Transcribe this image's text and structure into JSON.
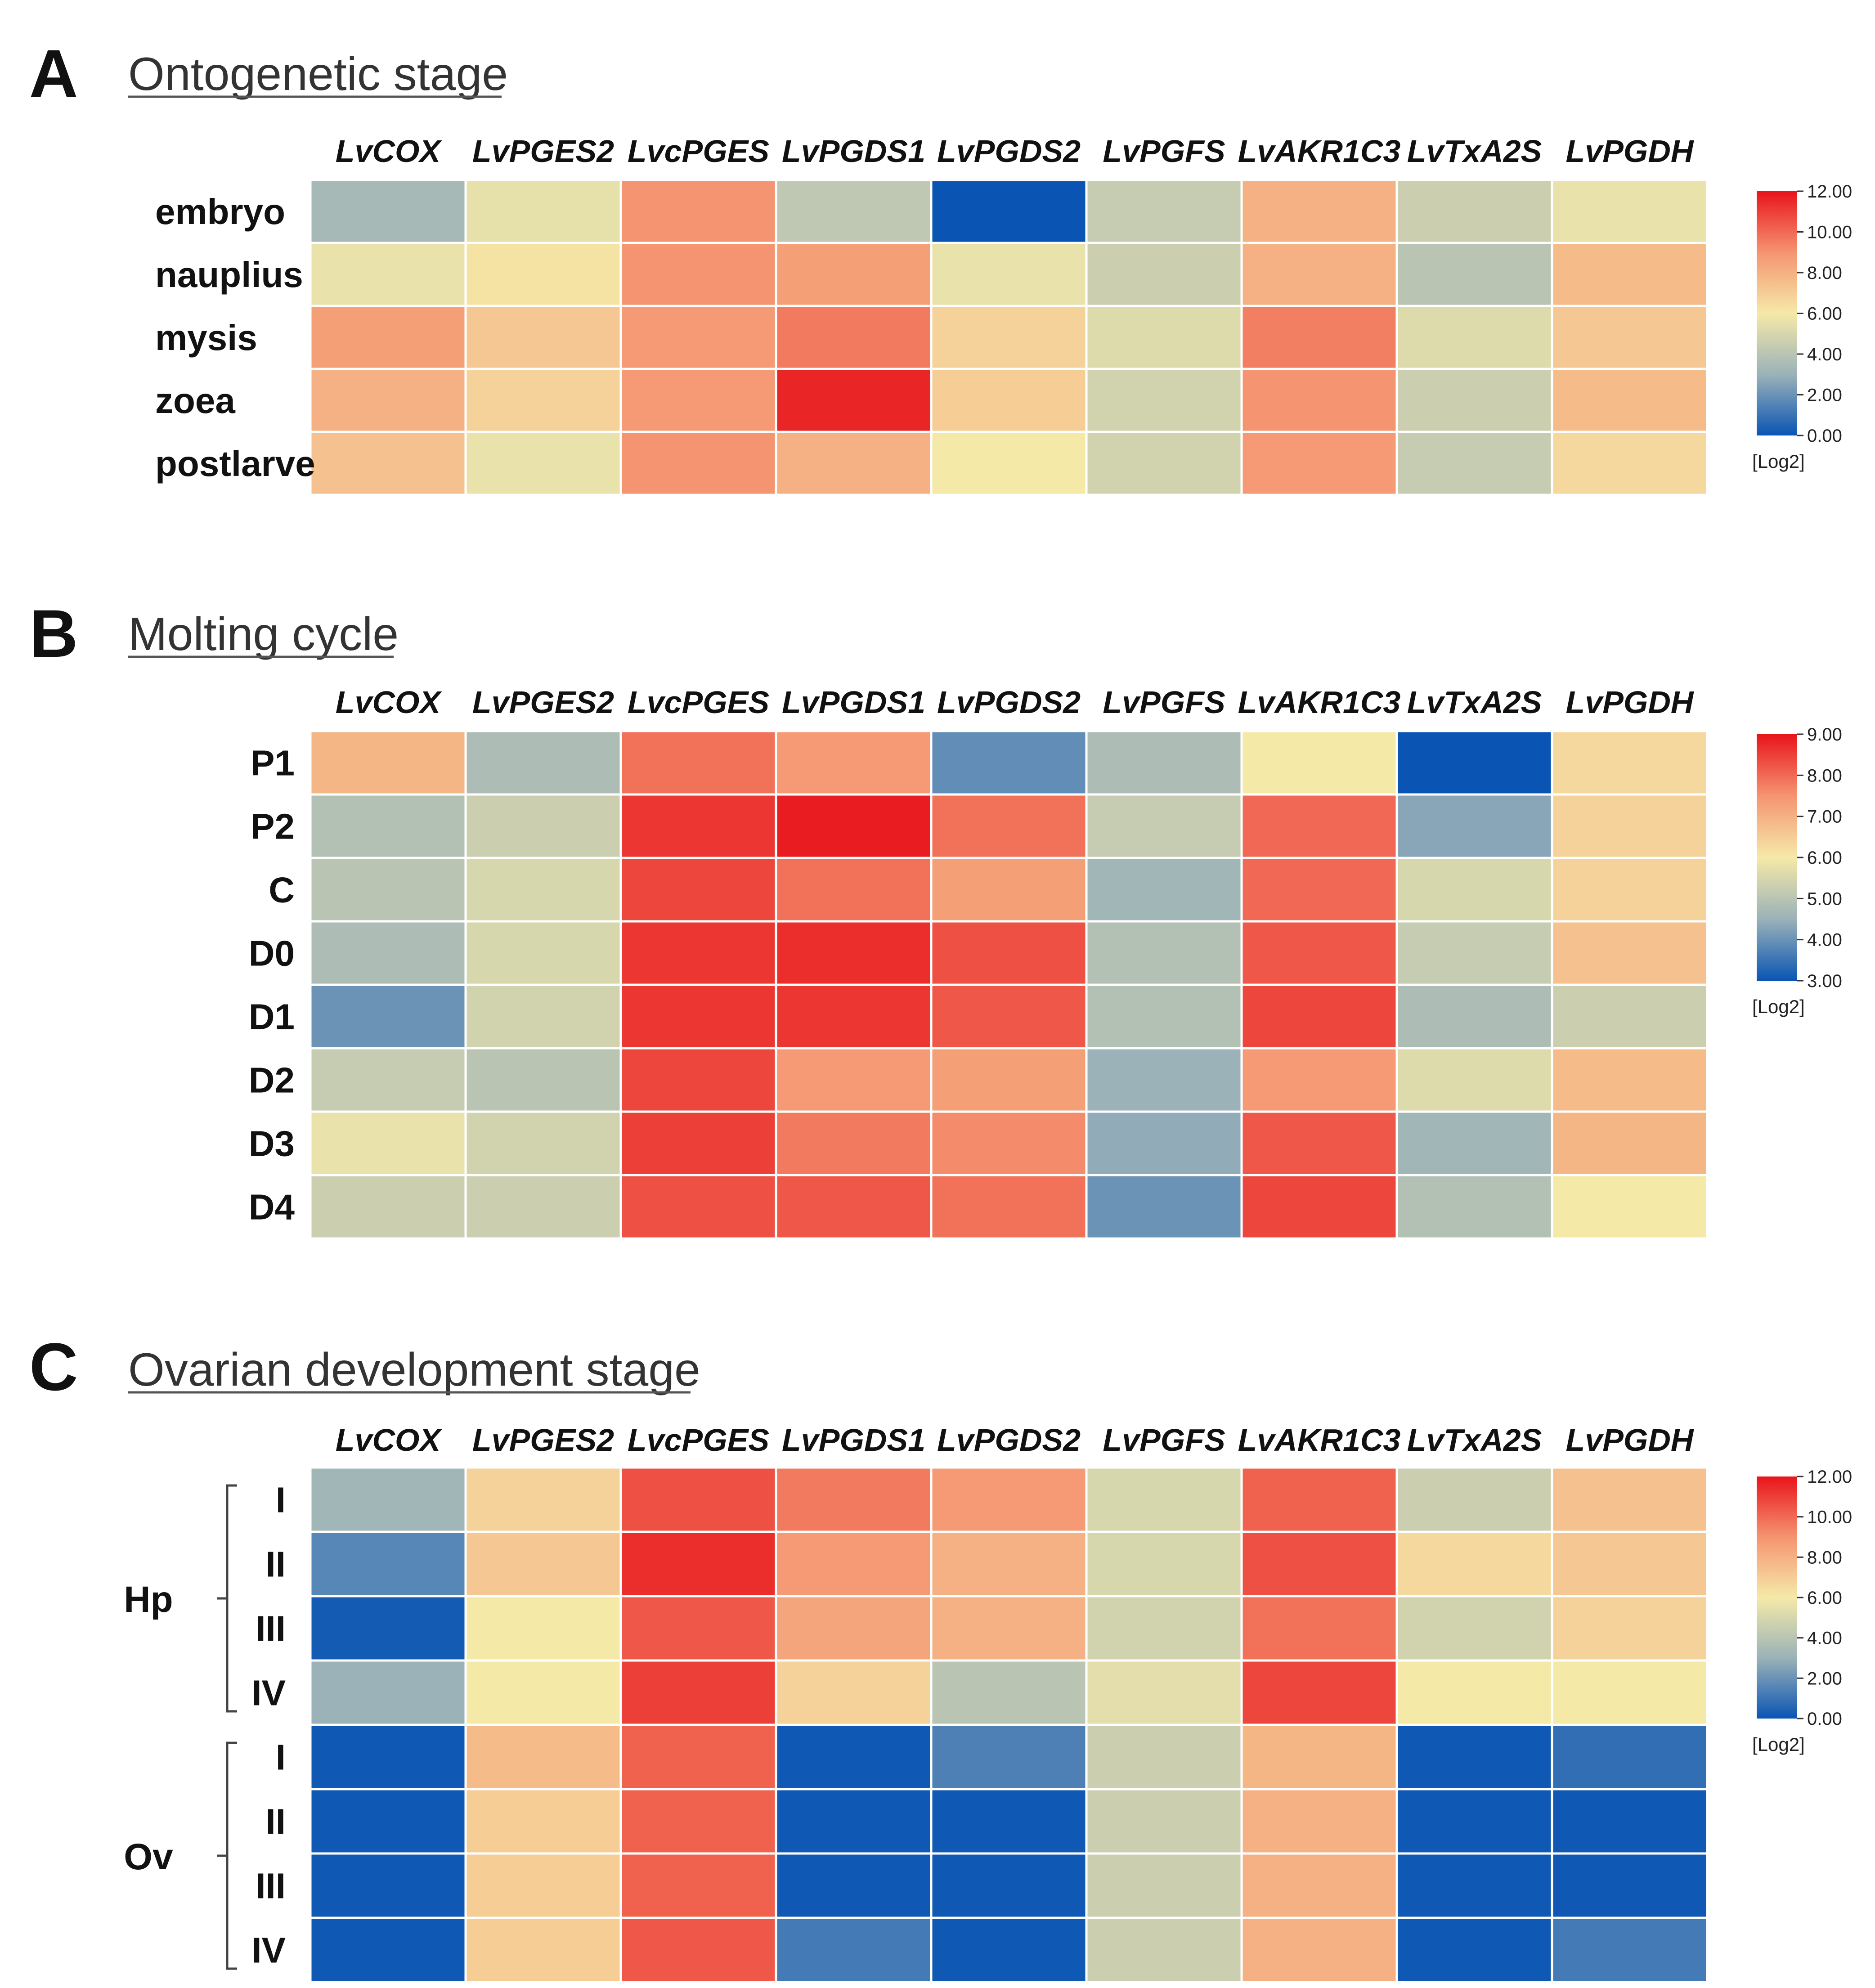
{
  "chart_data": [
    {
      "type": "heatmap",
      "panel_label": "A",
      "title": "Ontogenetic stage",
      "genes": [
        "LvCOX",
        "LvPGES2",
        "LvcPGES",
        "LvPGDS1",
        "LvPGDS2",
        "LvPGFS",
        "LvAKR1C3",
        "LvTxA2S",
        "LvPGDH"
      ],
      "rows": [
        "embryo",
        "nauplius",
        "mysis",
        "zoea",
        "postlarve"
      ],
      "values": [
        [
          3.4,
          5.5,
          9.0,
          4.2,
          0.0,
          4.4,
          8.0,
          4.6,
          5.6
        ],
        [
          5.6,
          6.2,
          9.0,
          8.6,
          5.6,
          4.6,
          8.0,
          4.0,
          7.6
        ],
        [
          8.6,
          7.2,
          8.8,
          9.6,
          6.8,
          5.2,
          9.5,
          5.2,
          7.2
        ],
        [
          8.0,
          6.8,
          8.8,
          11.6,
          7.0,
          4.8,
          9.0,
          4.6,
          7.6
        ],
        [
          7.4,
          5.6,
          9.0,
          8.0,
          6.0,
          4.8,
          8.8,
          4.4,
          6.6
        ]
      ],
      "colorbar": {
        "min": 0,
        "max": 12,
        "ticks": [
          "12.00",
          "10.00",
          "8.00",
          "6.00",
          "4.00",
          "2.00",
          "0.00"
        ],
        "label": "[Log2]"
      }
    },
    {
      "type": "heatmap",
      "panel_label": "B",
      "title": "Molting cycle",
      "genes": [
        "LvCOX",
        "LvPGES2",
        "LvcPGES",
        "LvPGDS1",
        "LvPGDS2",
        "LvPGFS",
        "LvAKR1C3",
        "LvTxA2S",
        "LvPGDH"
      ],
      "rows": [
        "P1",
        "P2",
        "C",
        "D0",
        "D1",
        "D2",
        "D3",
        "D4"
      ],
      "values": [
        [
          6.9,
          4.8,
          7.9,
          7.4,
          3.9,
          4.8,
          6.0,
          3.0,
          6.3
        ],
        [
          4.9,
          5.3,
          8.6,
          8.9,
          7.9,
          5.2,
          8.0,
          4.3,
          6.4
        ],
        [
          5.0,
          5.5,
          8.4,
          7.9,
          7.3,
          4.6,
          8.0,
          5.5,
          6.4
        ],
        [
          4.8,
          5.5,
          8.6,
          8.7,
          8.3,
          4.9,
          8.2,
          5.2,
          6.7
        ],
        [
          4.0,
          5.4,
          8.6,
          8.6,
          8.2,
          4.9,
          8.4,
          4.8,
          5.3
        ],
        [
          5.2,
          5.0,
          8.4,
          7.4,
          7.3,
          4.5,
          7.4,
          5.6,
          6.8
        ],
        [
          5.8,
          5.4,
          8.5,
          7.8,
          7.6,
          4.4,
          8.2,
          4.6,
          6.9
        ],
        [
          5.3,
          5.3,
          8.3,
          8.2,
          7.9,
          4.0,
          8.4,
          4.9,
          6.0
        ]
      ],
      "colorbar": {
        "min": 3,
        "max": 9,
        "ticks": [
          "9.00",
          "8.00",
          "7.00",
          "6.00",
          "5.00",
          "4.00",
          "3.00"
        ],
        "label": "[Log2]"
      }
    },
    {
      "type": "heatmap",
      "panel_label": "C",
      "title": "Ovarian development stage",
      "genes": [
        "LvCOX",
        "LvPGES2",
        "LvcPGES",
        "LvPGDS1",
        "LvPGDS2",
        "LvPGFS",
        "LvAKR1C3",
        "LvTxA2S",
        "LvPGDH"
      ],
      "rows": [
        "I",
        "II",
        "III",
        "IV",
        "I",
        "II",
        "III",
        "IV"
      ],
      "groups": [
        {
          "name": "Hp",
          "rows": [
            0,
            3
          ]
        },
        {
          "name": "Ov",
          "rows": [
            4,
            7
          ]
        }
      ],
      "values": [
        [
          3.2,
          6.8,
          10.6,
          9.6,
          8.8,
          5.0,
          10.2,
          4.6,
          7.4
        ],
        [
          1.6,
          7.2,
          11.4,
          8.8,
          8.0,
          5.0,
          10.6,
          6.6,
          7.2
        ],
        [
          0.2,
          6.0,
          10.4,
          8.4,
          8.0,
          4.8,
          9.8,
          4.8,
          6.8
        ],
        [
          3.0,
          6.0,
          11.0,
          6.8,
          4.0,
          5.4,
          10.8,
          6.0,
          6.0
        ],
        [
          0.1,
          7.6,
          10.2,
          0.1,
          1.4,
          4.6,
          7.8,
          0.1,
          0.8
        ],
        [
          0.1,
          7.0,
          10.2,
          0.1,
          0.1,
          4.6,
          8.0,
          0.1,
          0.1
        ],
        [
          0.1,
          7.0,
          10.2,
          0.1,
          0.1,
          4.6,
          8.0,
          0.1,
          0.1
        ],
        [
          0.1,
          7.0,
          10.4,
          1.2,
          0.1,
          4.6,
          8.0,
          0.1,
          1.2
        ]
      ],
      "colorbar": {
        "min": 0,
        "max": 12,
        "ticks": [
          "12.00",
          "10.00",
          "8.00",
          "6.00",
          "4.00",
          "2.00",
          "0.00"
        ],
        "label": "[Log2]"
      }
    }
  ],
  "colors": {
    "low": "#0a55b3",
    "mid_low": "#9bb2b8",
    "mid": "#f5e9a8",
    "mid_high": "#f59470",
    "high": "#e8141b"
  }
}
